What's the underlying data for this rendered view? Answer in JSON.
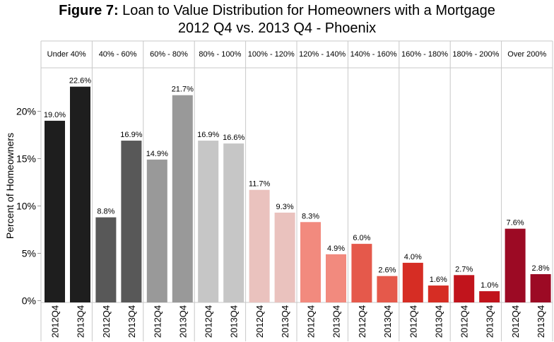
{
  "title": {
    "prefix": "Figure 7:",
    "main": " Loan to Value Distribution for Homeowners with a Mortgage",
    "subtitle": "2012 Q4 vs. 2013 Q4 - Phoenix"
  },
  "chart_data": {
    "type": "bar",
    "title": "Figure 7: Loan to Value Distribution for Homeowners with a Mortgage 2012 Q4 vs. 2013 Q4 - Phoenix",
    "ylabel": "Percent of Homeowners",
    "xlabel": "",
    "ylim": [
      0,
      24
    ],
    "yticks": [
      0,
      5,
      10,
      15,
      20
    ],
    "ytick_labels": [
      "0%",
      "5%",
      "10%",
      "15%",
      "20%"
    ],
    "bar_categories": [
      "2012Q4",
      "2013Q4"
    ],
    "groups": [
      {
        "label": "Under 40%",
        "values": [
          19.0,
          22.6
        ],
        "value_labels": [
          "19.0%",
          "22.6%"
        ],
        "colors": [
          "#1e1e1e",
          "#1e1e1e"
        ]
      },
      {
        "label": "40% - 60%",
        "values": [
          8.8,
          16.9
        ],
        "value_labels": [
          "8.8%",
          "16.9%"
        ],
        "colors": [
          "#585858",
          "#585858"
        ]
      },
      {
        "label": "60% - 80%",
        "values": [
          14.9,
          21.7
        ],
        "value_labels": [
          "14.9%",
          "21.7%"
        ],
        "colors": [
          "#999999",
          "#999999"
        ]
      },
      {
        "label": "80% - 100%",
        "values": [
          16.9,
          16.6
        ],
        "value_labels": [
          "16.9%",
          "16.6%"
        ],
        "colors": [
          "#c6c6c6",
          "#c6c6c6"
        ]
      },
      {
        "label": "100% - 120%",
        "values": [
          11.7,
          9.3
        ],
        "value_labels": [
          "11.7%",
          "9.3%"
        ],
        "colors": [
          "#eac2be",
          "#eac2be"
        ]
      },
      {
        "label": "120% - 140%",
        "values": [
          8.3,
          4.9
        ],
        "value_labels": [
          "8.3%",
          "4.9%"
        ],
        "colors": [
          "#f28a7e",
          "#f28a7e"
        ]
      },
      {
        "label": "140% - 160%",
        "values": [
          6.0,
          2.6
        ],
        "value_labels": [
          "6.0%",
          "2.6%"
        ],
        "colors": [
          "#e5594b",
          "#e5594b"
        ]
      },
      {
        "label": "160% - 180%",
        "values": [
          4.0,
          1.6
        ],
        "value_labels": [
          "4.0%",
          "1.6%"
        ],
        "colors": [
          "#d62d24",
          "#d62d24"
        ]
      },
      {
        "label": "180% - 200%",
        "values": [
          2.7,
          1.0
        ],
        "value_labels": [
          "2.7%",
          "1.0%"
        ],
        "colors": [
          "#c1141c",
          "#c1141c"
        ]
      },
      {
        "label": "Over 200%",
        "values": [
          7.6,
          2.8
        ],
        "value_labels": [
          "7.6%",
          "2.8%"
        ],
        "colors": [
          "#9c0a24",
          "#9c0a24"
        ]
      }
    ],
    "grid": false,
    "legend": "none"
  }
}
